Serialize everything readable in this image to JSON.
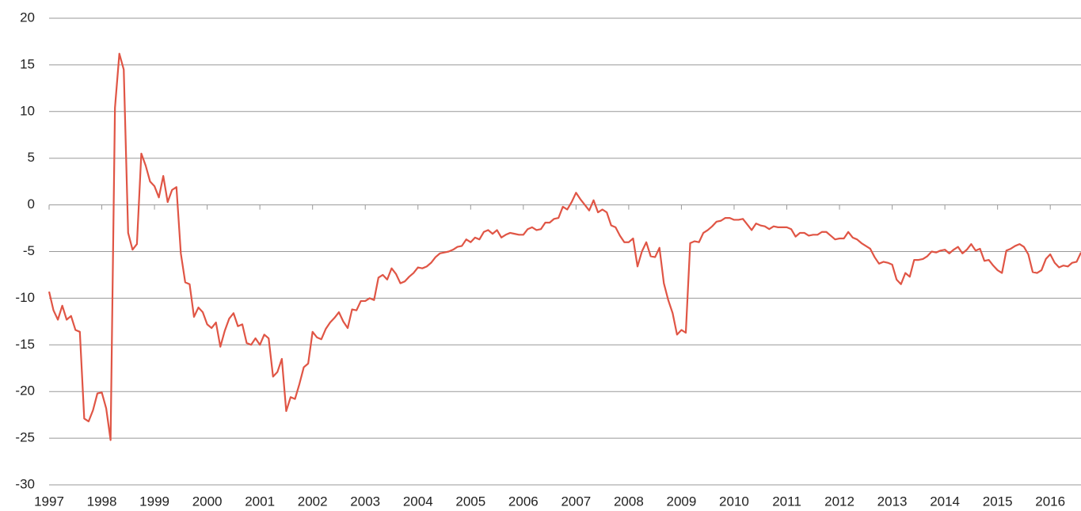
{
  "chart_data": {
    "type": "line",
    "categories": [
      "1997",
      null,
      null,
      null,
      null,
      null,
      null,
      null,
      null,
      null,
      null,
      null,
      "1998",
      null,
      null,
      null,
      null,
      null,
      null,
      null,
      null,
      null,
      null,
      null,
      "1999",
      null,
      null,
      null,
      null,
      null,
      null,
      null,
      null,
      null,
      null,
      null,
      "2000",
      null,
      null,
      null,
      null,
      null,
      null,
      null,
      null,
      null,
      null,
      null,
      "2001",
      null,
      null,
      null,
      null,
      null,
      null,
      null,
      null,
      null,
      null,
      null,
      "2002",
      null,
      null,
      null,
      null,
      null,
      null,
      null,
      null,
      null,
      null,
      null,
      "2003",
      null,
      null,
      null,
      null,
      null,
      null,
      null,
      null,
      null,
      null,
      null,
      "2004",
      null,
      null,
      null,
      null,
      null,
      null,
      null,
      null,
      null,
      null,
      null,
      "2005",
      null,
      null,
      null,
      null,
      null,
      null,
      null,
      null,
      null,
      null,
      null,
      "2006",
      null,
      null,
      null,
      null,
      null,
      null,
      null,
      null,
      null,
      null,
      null,
      "2007",
      null,
      null,
      null,
      null,
      null,
      null,
      null,
      null,
      null,
      null,
      null,
      "2008",
      null,
      null,
      null,
      null,
      null,
      null,
      null,
      null,
      null,
      null,
      null,
      "2009",
      null,
      null,
      null,
      null,
      null,
      null,
      null,
      null,
      null,
      null,
      null,
      "2010",
      null,
      null,
      null,
      null,
      null,
      null,
      null,
      null,
      null,
      null,
      null,
      "2011",
      null,
      null,
      null,
      null,
      null,
      null,
      null,
      null,
      null,
      null,
      null,
      "2012",
      null,
      null,
      null,
      null,
      null,
      null,
      null,
      null,
      null,
      null,
      null,
      "2013",
      null,
      null,
      null,
      null,
      null,
      null,
      null,
      null,
      null,
      null,
      null,
      "2014",
      null,
      null,
      null,
      null,
      null,
      null,
      null,
      null,
      null,
      null,
      null,
      "2015",
      null,
      null,
      null,
      null,
      null,
      null,
      null,
      null,
      null,
      null,
      null,
      "2016",
      null,
      null,
      null,
      null,
      null,
      null,
      null
    ],
    "series": [
      {
        "color": "#e05545",
        "values": [
          -9.3,
          -11.3,
          -12.3,
          -10.8,
          -12.3,
          -11.9,
          -13.4,
          -13.6,
          -22.9,
          -23.2,
          -22,
          -20.2,
          -20.1,
          -21.8,
          -25.2,
          10.4,
          16.2,
          14.5,
          -3,
          -4.8,
          -4.2,
          5.5,
          4.2,
          2.5,
          2,
          0.8,
          3.1,
          0.3,
          1.6,
          1.9,
          -5.2,
          -8.3,
          -8.5,
          -12,
          -11,
          -11.5,
          -12.8,
          -13.2,
          -12.6,
          -15.2,
          -13.5,
          -12.2,
          -11.6,
          -13,
          -12.8,
          -14.8,
          -15,
          -14.3,
          -15,
          -13.9,
          -14.3,
          -18.4,
          -17.9,
          -16.5,
          -22.1,
          -20.6,
          -20.8,
          -19.2,
          -17.4,
          -17,
          -13.6,
          -14.2,
          -14.4,
          -13.3,
          -12.6,
          -12.1,
          -11.5,
          -12.5,
          -13.2,
          -11.2,
          -11.3,
          -10.3,
          -10.3,
          -10,
          -10.2,
          -7.8,
          -7.5,
          -8,
          -6.8,
          -7.4,
          -8.4,
          -8.2,
          -7.7,
          -7.3,
          -6.7,
          -6.8,
          -6.6,
          -6.2,
          -5.6,
          -5.2,
          -5.1,
          -5,
          -4.8,
          -4.5,
          -4.4,
          -3.7,
          -4,
          -3.5,
          -3.7,
          -2.9,
          -2.7,
          -3.1,
          -2.7,
          -3.5,
          -3.2,
          -3,
          -3.1,
          -3.2,
          -3.2,
          -2.6,
          -2.4,
          -2.7,
          -2.6,
          -1.9,
          -1.9,
          -1.5,
          -1.4,
          -0.2,
          -0.5,
          0.3,
          1.3,
          0.6,
          0,
          -0.6,
          0.5,
          -0.8,
          -0.5,
          -0.8,
          -2.2,
          -2.4,
          -3.3,
          -4,
          -4,
          -3.6,
          -6.6,
          -5,
          -4,
          -5.5,
          -5.6,
          -4.6,
          -8.4,
          -10.2,
          -11.6,
          -13.9,
          -13.4,
          -13.7,
          -4.1,
          -3.9,
          -4,
          -3,
          -2.7,
          -2.3,
          -1.8,
          -1.7,
          -1.4,
          -1.4,
          -1.6,
          -1.6,
          -1.5,
          -2.1,
          -2.7,
          -2,
          -2.2,
          -2.3,
          -2.6,
          -2.3,
          -2.4,
          -2.4,
          -2.4,
          -2.6,
          -3.4,
          -3,
          -3,
          -3.3,
          -3.2,
          -3.2,
          -2.9,
          -2.9,
          -3.3,
          -3.7,
          -3.6,
          -3.6,
          -2.9,
          -3.5,
          -3.7,
          -4.1,
          -4.4,
          -4.7,
          -5.6,
          -6.3,
          -6.1,
          -6.2,
          -6.4,
          -8,
          -8.5,
          -7.3,
          -7.7,
          -5.9,
          -5.9,
          -5.8,
          -5.5,
          -5,
          -5.1,
          -4.9,
          -4.8,
          -5.2,
          -4.8,
          -4.5,
          -5.2,
          -4.8,
          -4.2,
          -4.9,
          -4.7,
          -6,
          -5.9,
          -6.5,
          -7,
          -7.3,
          -4.9,
          -4.7,
          -4.4,
          -4.2,
          -4.5,
          -5.3,
          -7.2,
          -7.3,
          -7,
          -5.8,
          -5.3,
          -6.2,
          -6.7,
          -6.5,
          -6.6,
          -6.2,
          -6.1,
          -5.1
        ]
      }
    ],
    "ylim": [
      -30,
      20
    ],
    "yticks": [
      20,
      15,
      10,
      5,
      0,
      -5,
      -10,
      -15,
      -20,
      -25,
      -30
    ],
    "grid": true
  }
}
